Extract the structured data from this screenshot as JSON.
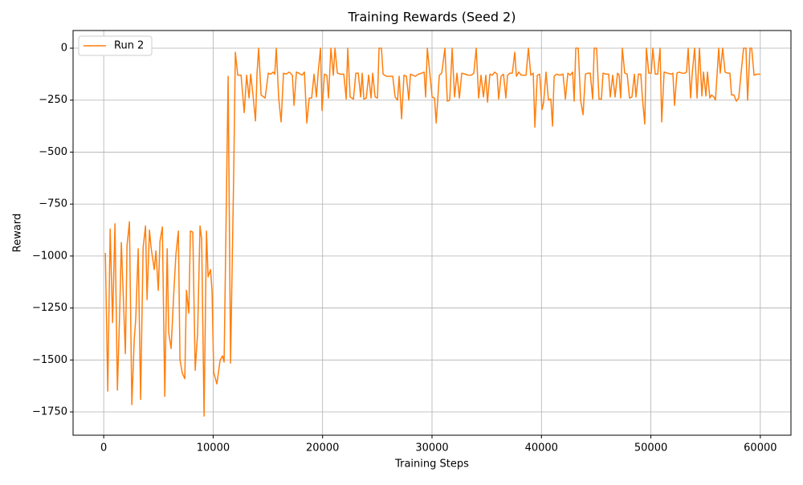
{
  "chart_data": {
    "type": "line",
    "title": "Training Rewards (Seed 2)",
    "x_label": "Training Steps",
    "y_label": "Reward",
    "grid": true,
    "legend": "upper left",
    "xlim": [
      -2800,
      62800
    ],
    "ylim": [
      -1862,
      85
    ],
    "xticks": [
      0,
      10000,
      20000,
      30000,
      40000,
      50000,
      60000
    ],
    "yticks": [
      0,
      {
        "value": -250,
        "label": "−250"
      },
      {
        "value": -500,
        "label": "−500"
      },
      {
        "value": -750,
        "label": "−750"
      },
      {
        "value": -1000,
        "label": "−1000"
      },
      {
        "value": -1250,
        "label": "−1250"
      },
      {
        "value": -1500,
        "label": "−1500"
      },
      {
        "value": -1750,
        "label": "−1750"
      }
    ],
    "x": [
      150,
      370,
      590,
      810,
      1030,
      1250,
      1470,
      1610,
      1980,
      2130,
      2350,
      2570,
      2790,
      2930,
      3150,
      3370,
      3600,
      3820,
      3960,
      4180,
      4330,
      4620,
      4770,
      4990,
      5140,
      5360,
      5580,
      5800,
      5940,
      6160,
      6380,
      6600,
      6820,
      6970,
      7190,
      7410,
      7560,
      7780,
      7920,
      8140,
      8360,
      8580,
      8800,
      8950,
      9170,
      9390,
      9540,
      9760,
      9900,
      10050,
      10340,
      10640,
      10860,
      11000,
      11370,
      11590,
      11880,
      12030,
      12250,
      12550,
      12840,
      13060,
      13280,
      13430,
      13650,
      13870,
      14010,
      14160,
      14380,
      14750,
      15040,
      15260,
      15480,
      15630,
      15770,
      15990,
      16210,
      16430,
      16650,
      16950,
      17240,
      17390,
      17610,
      17830,
      18120,
      18340,
      18560,
      18780,
      19000,
      19220,
      19440,
      19590,
      19810,
      19950,
      20170,
      20390,
      20540,
      20760,
      20980,
      21130,
      21350,
      21640,
      21940,
      22160,
      22300,
      22520,
      22820,
      23040,
      23260,
      23480,
      23620,
      23770,
      23990,
      24210,
      24430,
      24580,
      24800,
      25020,
      25160,
      25380,
      25530,
      25830,
      26120,
      26410,
      26630,
      26850,
      27000,
      27220,
      27440,
      27660,
      27880,
      28030,
      28250,
      28470,
      28760,
      29060,
      29280,
      29420,
      29570,
      29790,
      30010,
      30230,
      30380,
      30670,
      30890,
      31180,
      31400,
      31620,
      31840,
      32060,
      32280,
      32500,
      32720,
      33020,
      33310,
      33600,
      33820,
      34040,
      34260,
      34480,
      34700,
      34920,
      35070,
      35290,
      35510,
      35730,
      35950,
      36090,
      36310,
      36530,
      36750,
      36900,
      37120,
      37340,
      37560,
      37710,
      37930,
      38150,
      38370,
      38590,
      38810,
      39030,
      39250,
      39400,
      39620,
      39840,
      40060,
      40200,
      40420,
      40640,
      40860,
      41010,
      41160,
      41380,
      41670,
      41970,
      42190,
      42410,
      42630,
      42850,
      42990,
      43140,
      43360,
      43580,
      43800,
      44020,
      44240,
      44460,
      44680,
      44820,
      45040,
      45260,
      45480,
      45630,
      45920,
      46140,
      46290,
      46510,
      46730,
      46950,
      47100,
      47240,
      47390,
      47610,
      47830,
      48050,
      48270,
      48490,
      48640,
      48860,
      49080,
      49220,
      49440,
      49590,
      49810,
      50030,
      50180,
      50400,
      50620,
      50840,
      50990,
      51210,
      51500,
      51870,
      52010,
      52160,
      52380,
      52600,
      52820,
      53110,
      53260,
      53410,
      53630,
      53780,
      54000,
      54220,
      54440,
      54660,
      54810,
      55030,
      55170,
      55390,
      55540,
      55760,
      55900,
      56200,
      56340,
      56560,
      56780,
      57000,
      57220,
      57370,
      57590,
      57810,
      58030,
      58250,
      58470,
      58690,
      58840,
      59060,
      59210,
      59430,
      59720,
      60000
    ],
    "series": [
      {
        "name": "Run 2",
        "color": "#ff7f0e",
        "values": [
          -985,
          -1650,
          -870,
          -1320,
          -845,
          -1645,
          -1250,
          -935,
          -1470,
          -950,
          -835,
          -1715,
          -1400,
          -1300,
          -965,
          -1690,
          -960,
          -855,
          -1210,
          -875,
          -960,
          -1065,
          -975,
          -1165,
          -930,
          -860,
          -1675,
          -965,
          -1370,
          -1445,
          -1200,
          -990,
          -880,
          -1500,
          -1565,
          -1590,
          -1165,
          -1275,
          -880,
          -885,
          -1550,
          -1370,
          -855,
          -920,
          -1770,
          -880,
          -1100,
          -1065,
          -1170,
          -1560,
          -1615,
          -1500,
          -1480,
          -1510,
          -135,
          -1515,
          -600,
          -20,
          -130,
          -130,
          -310,
          -130,
          -240,
          -125,
          -230,
          -350,
          -120,
          0,
          -225,
          -240,
          -120,
          -125,
          -115,
          -125,
          0,
          -240,
          -355,
          -120,
          -125,
          -115,
          -130,
          -275,
          -115,
          -120,
          -130,
          -115,
          -360,
          -240,
          -240,
          -125,
          -235,
          -120,
          0,
          -300,
          -125,
          -130,
          -240,
          0,
          -130,
          0,
          -120,
          -125,
          -125,
          -245,
          0,
          -235,
          -245,
          -120,
          -120,
          -235,
          -120,
          -245,
          -240,
          -130,
          -240,
          -120,
          -235,
          -240,
          0,
          0,
          -125,
          -135,
          -135,
          -135,
          -235,
          -250,
          -135,
          -340,
          -130,
          -135,
          -250,
          -125,
          -130,
          -135,
          -125,
          -120,
          -115,
          -235,
          0,
          -115,
          -235,
          -240,
          -360,
          -130,
          -120,
          0,
          -255,
          -250,
          0,
          -235,
          -120,
          -240,
          -120,
          -125,
          -130,
          -130,
          -120,
          0,
          -240,
          -130,
          -235,
          -130,
          -260,
          -125,
          -130,
          -115,
          -125,
          -245,
          -135,
          -125,
          -240,
          -130,
          -120,
          -120,
          -20,
          -135,
          -115,
          -130,
          -130,
          -130,
          0,
          -130,
          -120,
          -380,
          -130,
          -125,
          -295,
          -260,
          -115,
          -250,
          -245,
          -375,
          -135,
          -125,
          -130,
          -125,
          -245,
          -120,
          -130,
          -115,
          -255,
          0,
          0,
          -250,
          -320,
          -125,
          -120,
          -120,
          -245,
          0,
          0,
          -245,
          -245,
          -120,
          -125,
          -125,
          -235,
          -130,
          -235,
          -120,
          -130,
          -240,
          0,
          -120,
          -125,
          -240,
          -235,
          -125,
          -235,
          -125,
          -125,
          -235,
          -365,
          0,
          -120,
          -120,
          0,
          -125,
          -125,
          0,
          -355,
          -115,
          -120,
          -125,
          -120,
          -275,
          -120,
          -115,
          -120,
          -120,
          -115,
          0,
          -240,
          -120,
          0,
          -240,
          0,
          -230,
          -115,
          -230,
          -115,
          -240,
          -225,
          -235,
          -250,
          0,
          -120,
          0,
          -115,
          -120,
          -120,
          -225,
          -225,
          -255,
          -240,
          -115,
          0,
          0,
          -250,
          0,
          0,
          -130,
          -125,
          -125
        ]
      }
    ]
  }
}
